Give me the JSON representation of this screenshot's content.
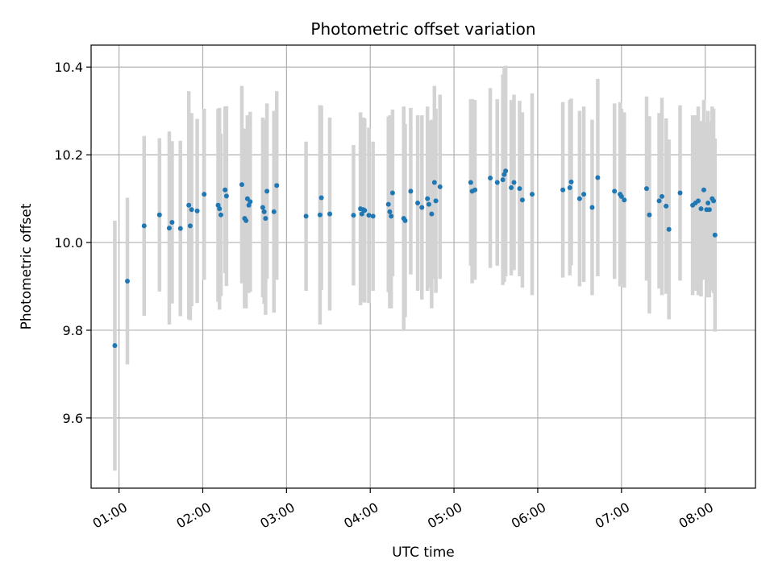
{
  "chart_data": {
    "type": "scatter",
    "title": "Photometric offset variation",
    "xlabel": "UTC time",
    "ylabel": "Photometric offset",
    "x_ticks": [
      "01:00",
      "02:00",
      "03:00",
      "04:00",
      "05:00",
      "06:00",
      "07:00",
      "08:00"
    ],
    "y_ticks": [
      "9.6",
      "9.8",
      "10.0",
      "10.2",
      "10.4"
    ],
    "xlim": [
      "00:40",
      "08:36"
    ],
    "ylim": [
      9.44,
      10.45
    ],
    "grid": true,
    "colors": {
      "points": "#1f77b4",
      "errorbars": "#d3d3d3",
      "grid": "#b0b0b0"
    },
    "series": [
      {
        "x": [
          "00:57",
          "01:06",
          "01:18",
          "01:29",
          "01:36",
          "01:38",
          "01:44",
          "01:50",
          "01:51",
          "01:52",
          "01:56",
          "02:01",
          "02:11",
          "02:12",
          "02:13",
          "02:16",
          "02:17",
          "02:28",
          "02:30",
          "02:31",
          "02:32",
          "02:33",
          "02:34",
          "02:43",
          "02:44",
          "02:45",
          "02:46",
          "02:51",
          "02:53",
          "03:14",
          "03:24",
          "03:25",
          "03:31",
          "03:48",
          "03:53",
          "03:54",
          "03:55",
          "03:56",
          "03:59",
          "04:02",
          "04:13",
          "04:14",
          "04:15",
          "04:16",
          "04:24",
          "04:25",
          "04:29",
          "04:34",
          "04:37",
          "04:41",
          "04:42",
          "04:44",
          "04:46",
          "04:47",
          "04:50",
          "05:12",
          "05:13",
          "05:15",
          "05:26",
          "05:31",
          "05:35",
          "05:36",
          "05:37",
          "05:41",
          "05:43",
          "05:47",
          "05:49",
          "05:56",
          "06:18",
          "06:23",
          "06:24",
          "06:30",
          "06:33",
          "06:39",
          "06:43",
          "06:55",
          "06:59",
          "07:00",
          "07:02",
          "07:18",
          "07:20",
          "07:27",
          "07:29",
          "07:32",
          "07:34",
          "07:42",
          "07:51",
          "07:53",
          "07:55",
          "07:57",
          "07:59",
          "08:01",
          "08:02",
          "08:03",
          "08:05",
          "08:06",
          "08:07"
        ],
        "y": [
          9.765,
          9.912,
          10.038,
          10.063,
          10.033,
          10.046,
          10.032,
          10.085,
          10.038,
          10.075,
          10.072,
          10.11,
          10.085,
          10.077,
          10.063,
          10.12,
          10.106,
          10.132,
          10.055,
          10.05,
          10.1,
          10.085,
          10.093,
          10.08,
          10.07,
          10.055,
          10.117,
          10.07,
          10.13,
          10.06,
          10.063,
          10.102,
          10.065,
          10.062,
          10.077,
          10.065,
          10.075,
          10.073,
          10.062,
          10.06,
          10.087,
          10.07,
          10.06,
          10.113,
          10.055,
          10.05,
          10.117,
          10.09,
          10.08,
          10.1,
          10.087,
          10.065,
          10.137,
          10.095,
          10.127,
          10.137,
          10.117,
          10.12,
          10.147,
          10.137,
          10.143,
          10.155,
          10.163,
          10.125,
          10.137,
          10.123,
          10.097,
          10.11,
          10.12,
          10.125,
          10.138,
          10.1,
          10.11,
          10.08,
          10.148,
          10.117,
          10.11,
          10.105,
          10.097,
          10.123,
          10.063,
          10.095,
          10.105,
          10.083,
          10.03,
          10.113,
          10.085,
          10.09,
          10.095,
          10.077,
          10.12,
          10.075,
          10.09,
          10.075,
          10.1,
          10.095,
          10.017
        ],
        "yerr": [
          0.285,
          0.19,
          0.205,
          0.175,
          0.22,
          0.185,
          0.2,
          0.26,
          0.215,
          0.22,
          0.21,
          0.195,
          0.22,
          0.23,
          0.185,
          0.19,
          0.205,
          0.225,
          0.205,
          0.2,
          0.19,
          0.2,
          0.205,
          0.205,
          0.21,
          0.22,
          0.2,
          0.23,
          0.215,
          0.17,
          0.25,
          0.21,
          0.22,
          0.16,
          0.22,
          0.2,
          0.21,
          0.21,
          0.2,
          0.17,
          0.2,
          0.22,
          0.21,
          0.19,
          0.255,
          0.22,
          0.19,
          0.2,
          0.21,
          0.21,
          0.19,
          0.215,
          0.22,
          0.21,
          0.21,
          0.19,
          0.21,
          0.205,
          0.205,
          0.19,
          0.24,
          0.245,
          0.24,
          0.2,
          0.2,
          0.2,
          0.2,
          0.23,
          0.2,
          0.2,
          0.19,
          0.2,
          0.2,
          0.2,
          0.225,
          0.2,
          0.21,
          0.2,
          0.2,
          0.21,
          0.225,
          0.2,
          0.225,
          0.2,
          0.205,
          0.2,
          0.205,
          0.2,
          0.215,
          0.2,
          0.205,
          0.2,
          0.21,
          0.2,
          0.21,
          0.21,
          0.22
        ]
      }
    ]
  }
}
